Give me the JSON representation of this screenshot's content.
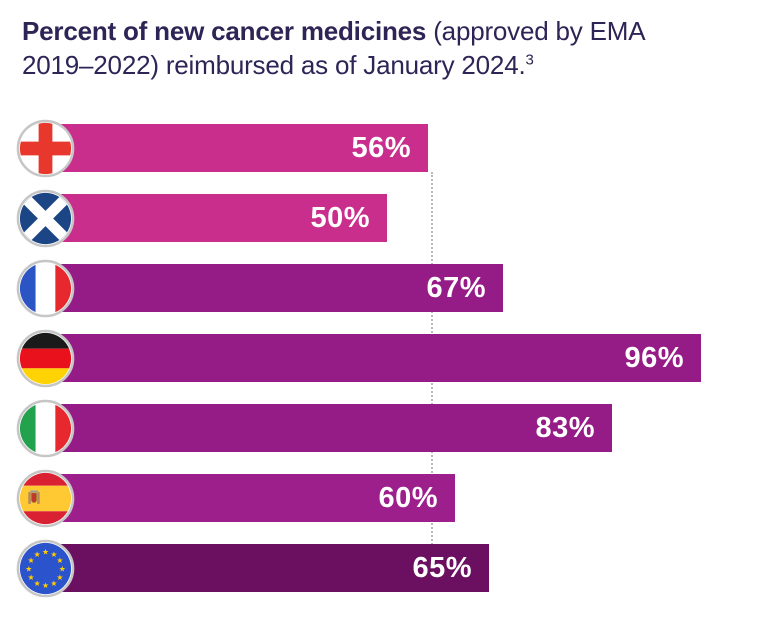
{
  "title": {
    "bold_text": "Percent of new cancer medicines",
    "after_bold": " (approved by EMA",
    "line2": "2019–2022) reimbursed as of January 2024.",
    "footnote": "3"
  },
  "colors": {
    "title_text": "#2E2456",
    "bar_pink": "#C92E8C",
    "bar_purple": "#951B87",
    "bar_purple_light": "#9C1F8C",
    "bar_dark_purple": "#6B1060",
    "value_label_text": "#FFFFFF",
    "reference_line": "#B9B9B9",
    "flag_ring": "#C6C6C6"
  },
  "chart_data": {
    "type": "bar",
    "orientation": "horizontal",
    "title": "Percent of new cancer medicines (approved by EMA 2019–2022) reimbursed as of January 2024.³",
    "unit": "%",
    "xlim": [
      0,
      100
    ],
    "grid": false,
    "legend": false,
    "reference_line": {
      "value": 56,
      "style": "dotted"
    },
    "categories": [
      "England",
      "Scotland",
      "France",
      "Germany",
      "Italy",
      "Spain",
      "European Union"
    ],
    "values": [
      56,
      50,
      67,
      96,
      83,
      60,
      65
    ],
    "rows": [
      {
        "country": "England",
        "value": 56,
        "label": "56%",
        "color_key": "bar_pink",
        "flag": "england-flag"
      },
      {
        "country": "Scotland",
        "value": 50,
        "label": "50%",
        "color_key": "bar_pink",
        "flag": "scotland-flag"
      },
      {
        "country": "France",
        "value": 67,
        "label": "67%",
        "color_key": "bar_purple",
        "flag": "france-flag"
      },
      {
        "country": "Germany",
        "value": 96,
        "label": "96%",
        "color_key": "bar_purple",
        "flag": "germany-flag"
      },
      {
        "country": "Italy",
        "value": 83,
        "label": "83%",
        "color_key": "bar_purple",
        "flag": "italy-flag"
      },
      {
        "country": "Spain",
        "value": 60,
        "label": "60%",
        "color_key": "bar_purple_light",
        "flag": "spain-flag"
      },
      {
        "country": "European Union",
        "value": 65,
        "label": "65%",
        "color_key": "bar_dark_purple",
        "flag": "eu-flag"
      }
    ]
  }
}
